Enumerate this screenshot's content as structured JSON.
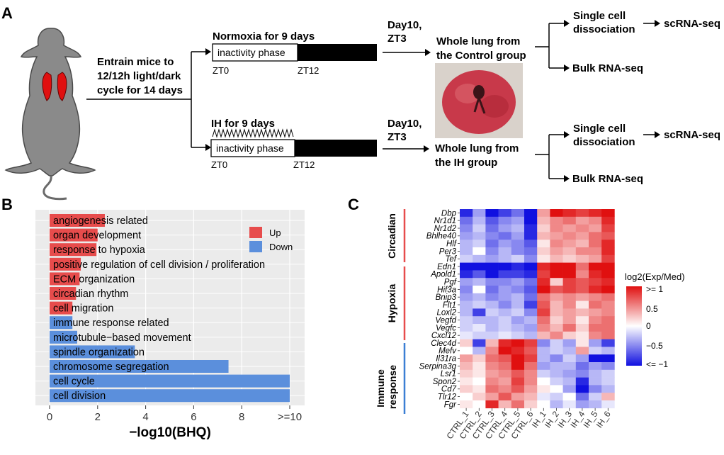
{
  "panel_labels": {
    "a": "A",
    "b": "B",
    "c": "C"
  },
  "panel_a": {
    "entrain": [
      "Entrain mice to",
      "12/12h light/dark",
      "cycle for 14 days"
    ],
    "normoxia_title": "Normoxia for 9 days",
    "ih_title": "IH for 9 days",
    "inactivity": "inactivity phase",
    "zt0": "ZT0",
    "zt12": "ZT12",
    "day10": "Day10,",
    "zt3": "ZT3",
    "control_lung": [
      "Whole lung from",
      "the Control group"
    ],
    "ih_lung": [
      "Whole lung from",
      "the IH group"
    ],
    "single_cell": [
      "Single cell",
      "dissociation"
    ],
    "scrna": "scRNA-seq",
    "bulk": "Bulk RNA-seq",
    "colors": {
      "lung": "#c8394a",
      "mouse": "#8a8a8a",
      "bar": "#000000"
    }
  },
  "panel_b": {
    "legend_up": "Up",
    "legend_down": "Down",
    "colors": {
      "up": "#e74c4c",
      "down": "#5b8fdc",
      "bg": "#ebebeb"
    },
    "chart_data": {
      "type": "bar",
      "orientation": "horizontal",
      "xlabel": "−log10(BHQ)",
      "ylabel": "",
      "xlim": [
        0,
        10
      ],
      "xticks": [
        "0",
        "2",
        "4",
        "6",
        "8",
        ">=10"
      ],
      "categories": [
        "angiogenesis related",
        "organ development",
        "response to hypoxia",
        "positive regulation of cell division / proliferation",
        "ECM organization",
        "circadian rhythm",
        "cell migration",
        "immune response related",
        "microtubule−based movement",
        "spindle organization",
        "chromosome segregation",
        "cell cycle",
        "cell division"
      ],
      "values": [
        2.3,
        2.0,
        1.95,
        1.3,
        1.25,
        1.1,
        0.95,
        0.95,
        1.15,
        3.55,
        7.45,
        10,
        10
      ],
      "direction": [
        "Up",
        "Up",
        "Up",
        "Up",
        "Up",
        "Up",
        "Up",
        "Down",
        "Down",
        "Down",
        "Down",
        "Down",
        "Down"
      ]
    }
  },
  "panel_c": {
    "group_labels": [
      "Circadian",
      "Hypoxia",
      "Immune\nresponse"
    ],
    "group_line_colors": [
      "#e74c4c",
      "#e74c4c",
      "#3b7fd4"
    ],
    "legend_title": "log2(Exp/Med)",
    "legend_ticks": [
      ">= 1",
      "0.5",
      "0",
      "−0.5",
      "<= −1"
    ],
    "chart_data": {
      "type": "heatmap",
      "colorscale": {
        "low": "#1010e0",
        "mid": "#ffffff",
        "high": "#e01010",
        "range": [
          -1,
          1
        ]
      },
      "columns": [
        "CTRL_1",
        "CTRL_2",
        "CTRL_3",
        "CTRL_4",
        "CTRL_5",
        "CTRL_6",
        "IH_1",
        "IH_2",
        "IH_3",
        "IH_4",
        "IH_5",
        "IH_6"
      ],
      "rows": [
        "Dbp",
        "Nr1d1",
        "Nr1d2",
        "Bhlhe40",
        "Hlf",
        "Per3",
        "Tef",
        "Edn1",
        "Apold1",
        "Pgf",
        "Hif3a",
        "Bnip3",
        "Flt1",
        "Loxl2",
        "Vegfd",
        "Vegfc",
        "Cxcl12",
        "Clec4d",
        "Mefv",
        "Il31ra",
        "Serpina3g",
        "Lsr1",
        "Spon2",
        "Cd7",
        "Tlr12",
        "Fgr"
      ],
      "row_groups": [
        0,
        0,
        0,
        0,
        0,
        0,
        0,
        1,
        1,
        1,
        1,
        1,
        1,
        1,
        1,
        1,
        1,
        2,
        2,
        2,
        2,
        2,
        2,
        2,
        2,
        2
      ],
      "values": [
        [
          -0.9,
          -0.4,
          -1.0,
          -0.8,
          -0.6,
          -1.0,
          0.4,
          1.0,
          0.9,
          0.8,
          0.9,
          1.0
        ],
        [
          -0.6,
          -0.3,
          -0.7,
          -0.5,
          -0.4,
          -1.0,
          0.3,
          0.5,
          0.6,
          0.4,
          0.5,
          0.9
        ],
        [
          -0.5,
          -0.2,
          -0.6,
          -0.4,
          -0.3,
          -0.9,
          0.2,
          0.5,
          0.4,
          0.5,
          0.4,
          0.8
        ],
        [
          -0.4,
          -0.3,
          -0.5,
          -0.6,
          -0.4,
          -0.9,
          0.3,
          0.4,
          0.5,
          0.4,
          0.6,
          0.7
        ],
        [
          -0.3,
          -0.2,
          -0.6,
          -0.4,
          -0.5,
          -0.7,
          0.1,
          0.5,
          0.4,
          0.3,
          0.6,
          0.9
        ],
        [
          -0.3,
          0.0,
          -0.5,
          -0.3,
          -0.5,
          -0.6,
          0.2,
          0.4,
          0.3,
          0.5,
          0.5,
          0.9
        ],
        [
          -0.2,
          -0.3,
          -0.4,
          -0.3,
          -0.2,
          -0.5,
          0.1,
          0.3,
          0.2,
          0.3,
          0.4,
          0.8
        ],
        [
          -1.0,
          -1.0,
          -1.0,
          -1.0,
          -0.9,
          -1.0,
          0.9,
          1.0,
          1.0,
          0.6,
          1.0,
          1.0
        ],
        [
          -0.9,
          -0.7,
          -1.0,
          -0.8,
          -0.8,
          -0.9,
          0.8,
          1.0,
          1.0,
          0.5,
          0.9,
          1.0
        ],
        [
          -0.4,
          -0.3,
          -0.5,
          -0.5,
          -0.4,
          -0.6,
          0.9,
          0.2,
          0.8,
          0.7,
          0.8,
          0.9
        ],
        [
          -0.5,
          0.0,
          -0.6,
          -0.4,
          -0.5,
          -0.7,
          1.0,
          0.7,
          0.8,
          0.7,
          0.9,
          1.0
        ],
        [
          -0.4,
          -0.3,
          -0.5,
          -0.4,
          -0.3,
          -0.6,
          0.6,
          0.4,
          0.5,
          0.4,
          0.5,
          0.6
        ],
        [
          -0.3,
          -0.2,
          -0.3,
          -0.5,
          -0.3,
          -0.8,
          0.7,
          0.3,
          0.5,
          0.1,
          0.6,
          0.5
        ],
        [
          -0.3,
          -0.8,
          -0.2,
          -0.3,
          -0.2,
          -0.5,
          0.8,
          0.3,
          0.4,
          0.3,
          0.4,
          0.5
        ],
        [
          -0.2,
          -0.3,
          -0.3,
          -0.2,
          -0.4,
          -0.3,
          0.6,
          0.2,
          0.4,
          0.1,
          0.5,
          0.6
        ],
        [
          -0.2,
          -0.1,
          -0.3,
          -0.2,
          -0.3,
          -0.4,
          0.5,
          0.3,
          0.6,
          0.2,
          0.6,
          0.6
        ],
        [
          -0.1,
          -0.2,
          -0.2,
          -0.1,
          -0.2,
          -0.3,
          0.3,
          0.5,
          0.2,
          0.1,
          0.5,
          0.6
        ],
        [
          0.2,
          -0.8,
          0.3,
          0.9,
          1.0,
          0.8,
          -0.5,
          -0.2,
          -0.4,
          0.1,
          -0.4,
          -0.8
        ],
        [
          0.0,
          -0.3,
          0.5,
          1.0,
          0.9,
          0.7,
          -0.3,
          -0.2,
          -0.3,
          0.4,
          -0.2,
          -0.3
        ],
        [
          0.4,
          0.2,
          0.6,
          0.7,
          1.0,
          0.8,
          -0.3,
          -0.5,
          -0.2,
          -0.4,
          -1.0,
          -1.0
        ],
        [
          0.3,
          0.1,
          0.5,
          0.6,
          1.0,
          0.6,
          -0.4,
          -0.3,
          -0.3,
          -0.6,
          -0.4,
          -0.5
        ],
        [
          0.2,
          0.1,
          0.4,
          0.5,
          0.7,
          0.5,
          -0.2,
          -0.3,
          -0.4,
          -0.5,
          -0.3,
          -0.2
        ],
        [
          0.1,
          0.0,
          0.5,
          0.4,
          0.8,
          0.5,
          0.0,
          -0.2,
          -0.3,
          -0.9,
          -0.3,
          -0.2
        ],
        [
          0.2,
          0.1,
          0.6,
          0.5,
          0.7,
          0.4,
          0.1,
          0.0,
          -0.4,
          -1.0,
          -0.5,
          -0.3
        ],
        [
          0.0,
          0.2,
          0.4,
          0.7,
          0.4,
          0.3,
          -0.1,
          -0.2,
          0.0,
          -0.6,
          -0.2,
          0.3
        ],
        [
          0.1,
          0.0,
          0.9,
          0.3,
          0.6,
          0.2,
          0.0,
          -0.3,
          -0.1,
          -0.4,
          -0.3,
          -0.1
        ]
      ]
    }
  }
}
